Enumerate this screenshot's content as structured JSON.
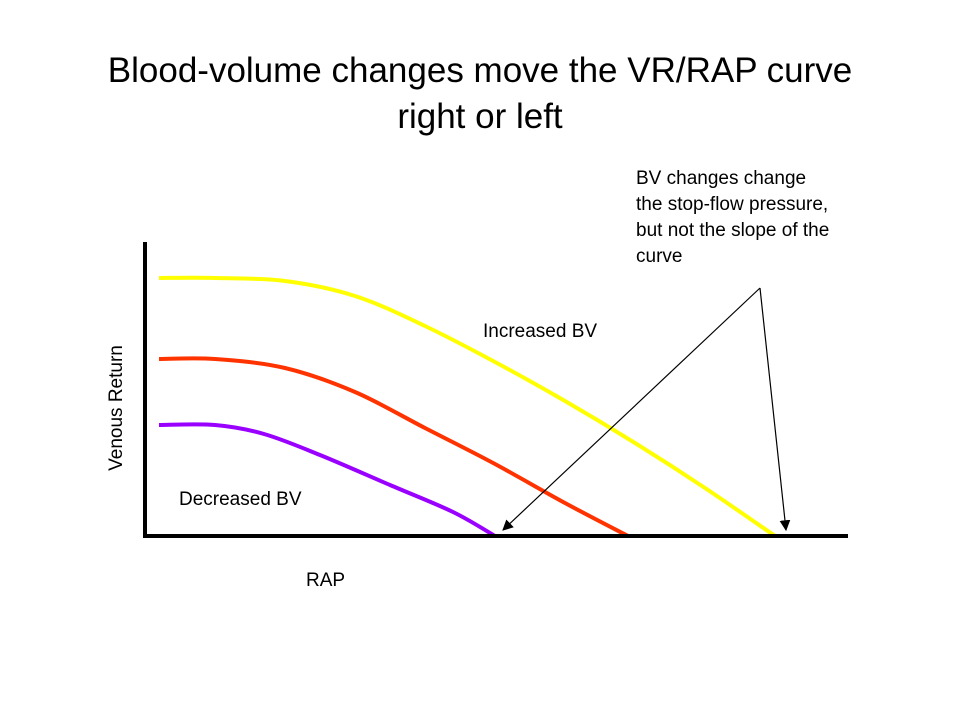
{
  "title": [
    "Blood-volume changes move the VR/RAP curve",
    "right or left"
  ],
  "callout": [
    "BV changes change",
    "the stop-flow pressure,",
    "but not the slope of the",
    "curve"
  ],
  "chart_data": {
    "type": "line",
    "xlabel": "RAP",
    "ylabel": "Venous Return",
    "xlim": [
      0,
      10
    ],
    "ylim": [
      0,
      10
    ],
    "grid": false,
    "annotations": [
      "Increased BV",
      "Decreased BV"
    ],
    "series": [
      {
        "name": "Increased BV",
        "color": "#ffff00",
        "x": [
          0.2,
          1.0,
          2.0,
          3.0,
          4.0,
          5.0,
          6.0,
          7.0,
          8.0,
          9.0
        ],
        "y": [
          8.6,
          8.6,
          8.5,
          8.0,
          7.0,
          5.8,
          4.5,
          3.1,
          1.6,
          0.0
        ]
      },
      {
        "name": "",
        "color": "#ff3300",
        "x": [
          0.2,
          1.0,
          2.0,
          3.0,
          4.0,
          5.0,
          6.0,
          6.9
        ],
        "y": [
          5.9,
          5.9,
          5.6,
          4.8,
          3.6,
          2.4,
          1.1,
          0.0
        ]
      },
      {
        "name": "Decreased BV",
        "color": "#9900ff",
        "x": [
          0.2,
          1.0,
          1.7,
          2.5,
          3.5,
          4.4,
          5.0
        ],
        "y": [
          3.7,
          3.7,
          3.4,
          2.7,
          1.7,
          0.8,
          0.0
        ]
      }
    ]
  }
}
